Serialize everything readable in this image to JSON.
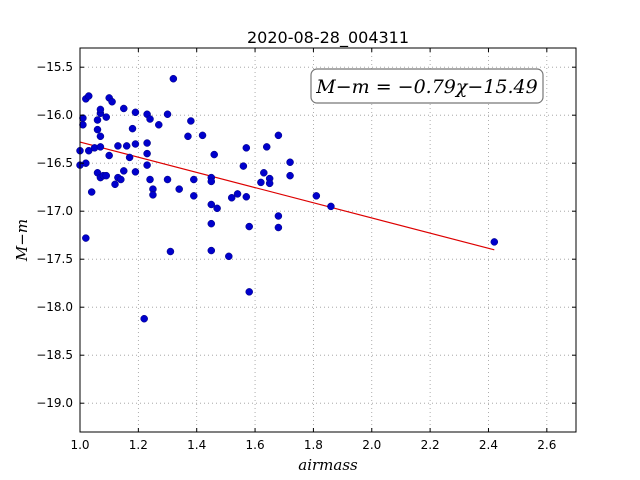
{
  "chart_data": {
    "type": "scatter",
    "title": "2020-08-28_004311",
    "xlabel": "airmass",
    "ylabel": "M−m",
    "xlim": [
      1.0,
      2.7
    ],
    "ylim": [
      -19.3,
      -15.3
    ],
    "x_ticks": [
      1.0,
      1.2,
      1.4,
      1.6,
      1.8,
      2.0,
      2.2,
      2.4,
      2.6
    ],
    "x_tick_labels": [
      "1.0",
      "1.2",
      "1.4",
      "1.6",
      "1.8",
      "2.0",
      "2.2",
      "2.4",
      "2.6"
    ],
    "y_ticks": [
      -15.5,
      -16.0,
      -16.5,
      -17.0,
      -17.5,
      -18.0,
      -18.5,
      -19.0
    ],
    "y_tick_labels": [
      "−15.5",
      "−16.0",
      "−16.5",
      "−17.0",
      "−17.5",
      "−18.0",
      "−18.5",
      "−19.0"
    ],
    "grid": true,
    "annotation": "M−m = −0.79χ−15.49",
    "marker_color": "#0000cc",
    "fit_color": "#dd0000",
    "fit": {
      "slope": -0.79,
      "intercept": -15.49,
      "x_range": [
        1.0,
        2.42
      ]
    },
    "points": [
      [
        1.0,
        -16.37
      ],
      [
        1.0,
        -16.52
      ],
      [
        1.01,
        -16.03
      ],
      [
        1.01,
        -16.1
      ],
      [
        1.02,
        -16.5
      ],
      [
        1.02,
        -15.83
      ],
      [
        1.02,
        -17.28
      ],
      [
        1.03,
        -16.37
      ],
      [
        1.03,
        -15.8
      ],
      [
        1.04,
        -16.8
      ],
      [
        1.05,
        -16.34
      ],
      [
        1.06,
        -16.05
      ],
      [
        1.06,
        -16.15
      ],
      [
        1.06,
        -16.6
      ],
      [
        1.07,
        -16.33
      ],
      [
        1.07,
        -15.98
      ],
      [
        1.07,
        -15.94
      ],
      [
        1.07,
        -16.22
      ],
      [
        1.07,
        -16.65
      ],
      [
        1.08,
        -16.63
      ],
      [
        1.09,
        -16.02
      ],
      [
        1.09,
        -16.63
      ],
      [
        1.1,
        -16.42
      ],
      [
        1.1,
        -15.82
      ],
      [
        1.11,
        -15.86
      ],
      [
        1.12,
        -16.72
      ],
      [
        1.13,
        -16.32
      ],
      [
        1.13,
        -16.65
      ],
      [
        1.14,
        -16.67
      ],
      [
        1.15,
        -15.93
      ],
      [
        1.15,
        -16.58
      ],
      [
        1.16,
        -16.32
      ],
      [
        1.17,
        -16.44
      ],
      [
        1.18,
        -16.14
      ],
      [
        1.19,
        -15.97
      ],
      [
        1.19,
        -16.3
      ],
      [
        1.19,
        -16.59
      ],
      [
        1.22,
        -18.12
      ],
      [
        1.23,
        -16.29
      ],
      [
        1.23,
        -16.4
      ],
      [
        1.23,
        -16.52
      ],
      [
        1.23,
        -15.99
      ],
      [
        1.24,
        -16.04
      ],
      [
        1.24,
        -16.67
      ],
      [
        1.25,
        -16.77
      ],
      [
        1.25,
        -16.83
      ],
      [
        1.27,
        -16.1
      ],
      [
        1.3,
        -15.99
      ],
      [
        1.3,
        -16.67
      ],
      [
        1.31,
        -17.42
      ],
      [
        1.32,
        -15.62
      ],
      [
        1.34,
        -16.77
      ],
      [
        1.37,
        -16.22
      ],
      [
        1.38,
        -16.06
      ],
      [
        1.39,
        -16.67
      ],
      [
        1.39,
        -16.84
      ],
      [
        1.42,
        -16.21
      ],
      [
        1.45,
        -16.65
      ],
      [
        1.45,
        -16.69
      ],
      [
        1.45,
        -16.93
      ],
      [
        1.45,
        -17.13
      ],
      [
        1.45,
        -17.41
      ],
      [
        1.46,
        -16.41
      ],
      [
        1.47,
        -16.97
      ],
      [
        1.51,
        -17.47
      ],
      [
        1.52,
        -16.86
      ],
      [
        1.54,
        -16.82
      ],
      [
        1.56,
        -16.53
      ],
      [
        1.57,
        -16.85
      ],
      [
        1.57,
        -16.34
      ],
      [
        1.58,
        -17.16
      ],
      [
        1.58,
        -17.84
      ],
      [
        1.62,
        -16.7
      ],
      [
        1.63,
        -16.6
      ],
      [
        1.64,
        -16.33
      ],
      [
        1.65,
        -16.66
      ],
      [
        1.65,
        -16.71
      ],
      [
        1.68,
        -16.21
      ],
      [
        1.68,
        -17.05
      ],
      [
        1.68,
        -17.17
      ],
      [
        1.72,
        -16.49
      ],
      [
        1.72,
        -16.63
      ],
      [
        1.81,
        -16.84
      ],
      [
        1.86,
        -16.95
      ],
      [
        2.42,
        -17.32
      ]
    ]
  }
}
